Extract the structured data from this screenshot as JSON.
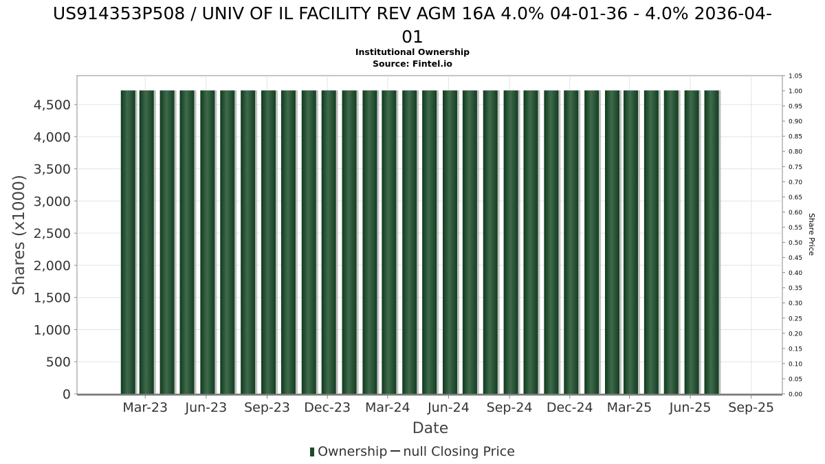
{
  "title_line1": "US914353P508 / UNIV OF IL FACILITY REV AGM 16A 4.0% 04-01-36 - 4.0% 2036-04-",
  "title_line2": "01",
  "subtitle1": "Institutional Ownership",
  "subtitle2": "Source: Fintel.io",
  "legend": {
    "ownership_label": "Ownership",
    "price_label": "null Closing Price"
  },
  "colors": {
    "bar": "#1e4a2c",
    "bar_light": "#3f6a4c",
    "bar_shadow": "#a9aea9",
    "grid": "#e3e3e3",
    "frame": "#8a8a8a"
  },
  "chart_data": {
    "type": "bar",
    "xlabel": "Date",
    "ylabel": "Shares (x1000)",
    "y2label": "Share Price",
    "ylim": [
      0,
      4950
    ],
    "y2lim": [
      0,
      1.05
    ],
    "yticks": [
      0,
      500,
      1000,
      1500,
      2000,
      2500,
      3000,
      3500,
      4000,
      4500
    ],
    "ytick_labels": [
      "0",
      "500",
      "1,000",
      "1,500",
      "2,000",
      "2,500",
      "3,000",
      "3,500",
      "4,000",
      "4,500"
    ],
    "y2ticks": [
      "0.00",
      "0.05",
      "0.10",
      "0.15",
      "0.20",
      "0.25",
      "0.30",
      "0.35",
      "0.40",
      "0.45",
      "0.50",
      "0.55",
      "0.60",
      "0.65",
      "0.70",
      "0.75",
      "0.80",
      "0.85",
      "0.90",
      "0.95",
      "1.00",
      "1.05"
    ],
    "xticks": [
      "Mar-23",
      "Jun-23",
      "Sep-23",
      "Dec-23",
      "Mar-24",
      "Jun-24",
      "Sep-24",
      "Dec-24",
      "Mar-25",
      "Jun-25",
      "Sep-25"
    ],
    "xlim": [
      "2022-12-02",
      "2025-11-01"
    ],
    "grid": true,
    "legend_position": "bottom",
    "series": [
      {
        "name": "Ownership",
        "dates": [
          "2023-02-01",
          "2023-03-01",
          "2023-04-01",
          "2023-05-01",
          "2023-06-01",
          "2023-07-01",
          "2023-08-01",
          "2023-09-01",
          "2023-10-01",
          "2023-11-01",
          "2023-12-01",
          "2024-01-01",
          "2024-02-01",
          "2024-03-01",
          "2024-04-01",
          "2024-05-01",
          "2024-06-01",
          "2024-07-01",
          "2024-08-01",
          "2024-09-01",
          "2024-10-01",
          "2024-11-01",
          "2024-12-01",
          "2025-01-01",
          "2025-02-01",
          "2025-03-01",
          "2025-04-01",
          "2025-05-01",
          "2025-06-01",
          "2025-07-01"
        ],
        "values": [
          4720,
          4720,
          4720,
          4720,
          4720,
          4720,
          4720,
          4720,
          4720,
          4720,
          4720,
          4720,
          4720,
          4720,
          4720,
          4720,
          4720,
          4720,
          4720,
          4720,
          4720,
          4720,
          4720,
          4720,
          4720,
          4720,
          4720,
          4720,
          4720,
          4720
        ]
      }
    ]
  }
}
